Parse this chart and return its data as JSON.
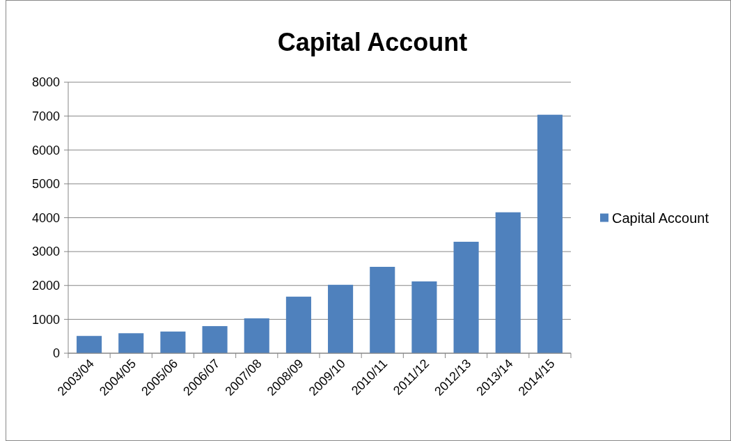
{
  "chart_data": {
    "type": "bar",
    "title": "Capital Account",
    "categories": [
      "2003/04",
      "2004/05",
      "2005/06",
      "2006/07",
      "2007/08",
      "2008/09",
      "2009/10",
      "2010/11",
      "2011/12",
      "2012/13",
      "2013/14",
      "2014/15"
    ],
    "series": [
      {
        "name": "Capital Account",
        "color": "#4f81bd",
        "values": [
          510,
          590,
          640,
          800,
          1030,
          1670,
          2020,
          2550,
          2120,
          3290,
          4160,
          7040
        ]
      }
    ],
    "ylim": [
      0,
      8000
    ],
    "yticks": [
      0,
      1000,
      2000,
      3000,
      4000,
      5000,
      6000,
      7000,
      8000
    ],
    "grid": "y",
    "legend": "right"
  }
}
